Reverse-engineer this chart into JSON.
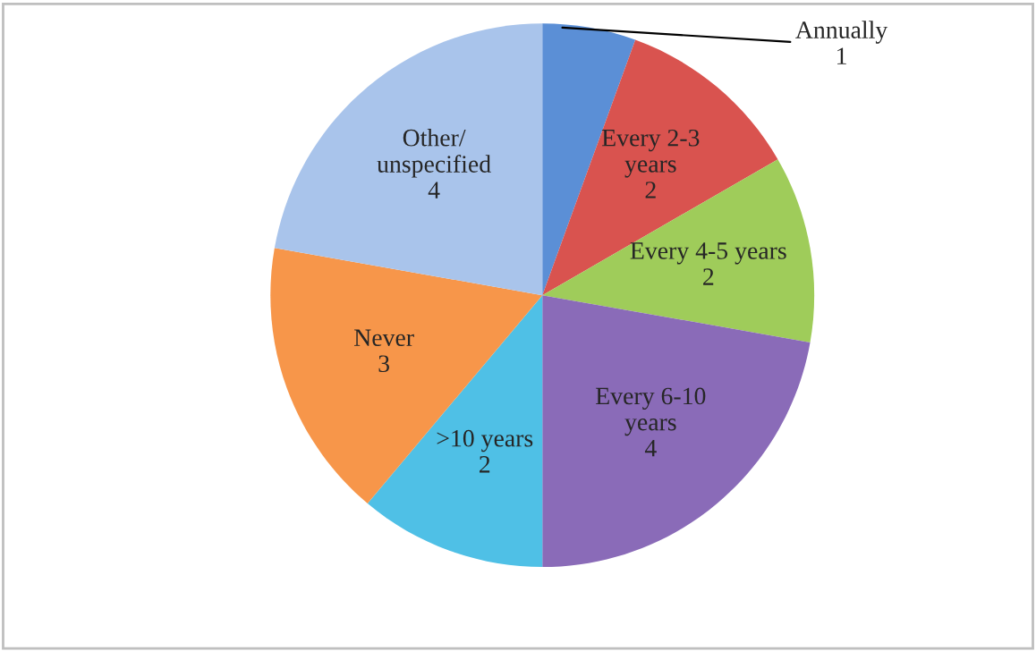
{
  "chart_data": {
    "type": "pie",
    "categories": [
      "Annually",
      "Every 2-3\nyears",
      "Every 4-5 years",
      "Every 6-10\nyears",
      ">10 years",
      "Never",
      "Other/\nunspecified"
    ],
    "values": [
      1,
      2,
      2,
      4,
      2,
      3,
      4
    ],
    "colors": [
      "#5b8fd6",
      "#d9534f",
      "#9fcc5a",
      "#8a6bb8",
      "#4fc0e6",
      "#f7964a",
      "#a9c4eb"
    ],
    "data_labels": true
  }
}
